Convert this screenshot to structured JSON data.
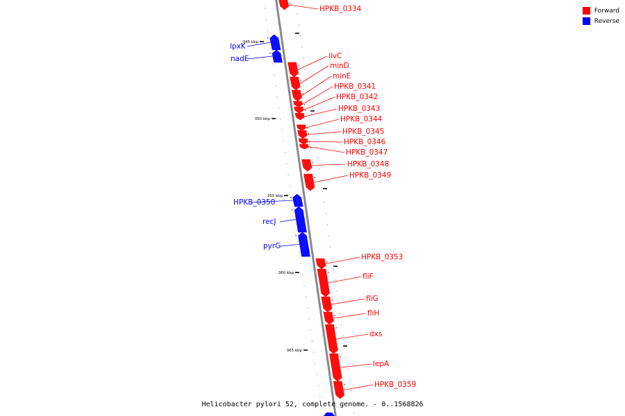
{
  "legend": {
    "forward_label": "Forward",
    "reverse_label": "Reverse",
    "forward_color": "#ff0000",
    "reverse_color": "#0000ff"
  },
  "caption": "Helicobacter pylori 52, complete genome. - 0..1568826",
  "kbp_marks": [
    "345 kbp",
    "350 kbp",
    "355 kbp",
    "360 kbp",
    "365 kbp"
  ],
  "genes": [
    {
      "name": "HPKB_0334",
      "strand": "forward"
    },
    {
      "name": "lpxK",
      "strand": "reverse"
    },
    {
      "name": "nadE",
      "strand": "reverse"
    },
    {
      "name": "ilvC",
      "strand": "forward"
    },
    {
      "name": "minD",
      "strand": "forward"
    },
    {
      "name": "minE",
      "strand": "forward"
    },
    {
      "name": "HPKB_0341",
      "strand": "forward"
    },
    {
      "name": "HPKB_0342",
      "strand": "forward"
    },
    {
      "name": "HPKB_0343",
      "strand": "forward"
    },
    {
      "name": "HPKB_0344",
      "strand": "forward"
    },
    {
      "name": "HPKB_0345",
      "strand": "forward"
    },
    {
      "name": "HPKB_0346",
      "strand": "forward"
    },
    {
      "name": "HPKB_0347",
      "strand": "forward"
    },
    {
      "name": "HPKB_0348",
      "strand": "forward"
    },
    {
      "name": "HPKB_0349",
      "strand": "forward"
    },
    {
      "name": "HPKB_0350",
      "strand": "reverse"
    },
    {
      "name": "recJ",
      "strand": "reverse"
    },
    {
      "name": "pyrG",
      "strand": "reverse"
    },
    {
      "name": "HPKB_0353",
      "strand": "forward"
    },
    {
      "name": "fliF",
      "strand": "forward"
    },
    {
      "name": "fliG",
      "strand": "forward"
    },
    {
      "name": "fliH",
      "strand": "forward"
    },
    {
      "name": "dxs",
      "strand": "forward"
    },
    {
      "name": "lepA",
      "strand": "forward"
    },
    {
      "name": "HPKB_0359",
      "strand": "forward"
    }
  ]
}
